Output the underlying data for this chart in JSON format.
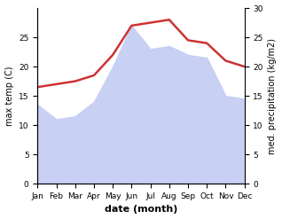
{
  "months": [
    "Jan",
    "Feb",
    "Mar",
    "Apr",
    "May",
    "Jun",
    "Jul",
    "Aug",
    "Sep",
    "Oct",
    "Nov",
    "Dec"
  ],
  "temp": [
    16.5,
    17.0,
    17.5,
    18.5,
    22.0,
    27.0,
    27.5,
    28.0,
    24.5,
    24.0,
    21.0,
    20.0
  ],
  "precip": [
    13.5,
    11.0,
    11.5,
    14.0,
    20.0,
    27.0,
    23.0,
    23.5,
    22.0,
    21.5,
    15.0,
    14.5
  ],
  "temp_color": "#cc3333",
  "precip_fill_color": "#c8d0f4",
  "precip_line_color": "#c8d0f4",
  "ylim": [
    0,
    30
  ],
  "yticks_left": [
    0,
    5,
    10,
    15,
    20,
    25
  ],
  "yticks_right": [
    0,
    5,
    10,
    15,
    20,
    25,
    30
  ],
  "xlabel": "date (month)",
  "ylabel_left": "max temp (C)",
  "ylabel_right": "med. precipitation (kg/m2)",
  "bg_color": "#ffffff",
  "label_fontsize": 7,
  "tick_fontsize": 6.5,
  "xlabel_fontsize": 8,
  "temp_linewidth": 1.8
}
